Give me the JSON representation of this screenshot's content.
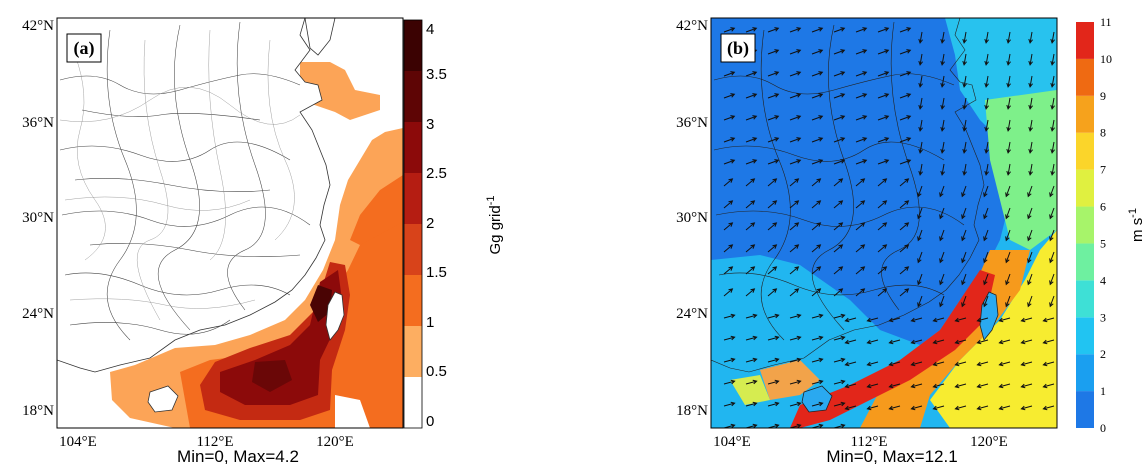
{
  "panel_a": {
    "label": "(a)",
    "lat_ticks": [
      "42°N",
      "36°N",
      "30°N",
      "24°N",
      "18°N"
    ],
    "lon_ticks": [
      "104°E",
      "112°E",
      "120°E"
    ],
    "footer": "Min=0,   Max=4.2",
    "colorbar": {
      "ticks": [
        "4",
        "3.5",
        "3",
        "2.5",
        "2",
        "1.5",
        "1",
        "0.5",
        "0"
      ],
      "label": "Gg grid",
      "label_sup": "-1",
      "colors": [
        "#ffffff",
        "#fdae61",
        "#f46d1f",
        "#d8431a",
        "#b51d12",
        "#8c0a0a",
        "#5e0505",
        "#3b0202",
        "#1a0000"
      ]
    }
  },
  "panel_b": {
    "label": "(b)",
    "lat_ticks": [
      "42°N",
      "36°N",
      "30°N",
      "24°N",
      "18°N"
    ],
    "lon_ticks": [
      "104°E",
      "112°E",
      "120°E"
    ],
    "footer": "Min=0,   Max=12.1",
    "colorbar": {
      "ticks": [
        "11",
        "10",
        "9",
        "8",
        "7",
        "6",
        "5",
        "4",
        "3",
        "2",
        "1",
        "0"
      ],
      "label": "m s",
      "label_sup": "-1",
      "colors": [
        "#1e78e6",
        "#1a9ff0",
        "#21c4f2",
        "#3ee0d6",
        "#6ef0a0",
        "#a7f46a",
        "#e0f040",
        "#fbd52a",
        "#f6a21c",
        "#ef6a12",
        "#e2261a"
      ]
    }
  }
}
